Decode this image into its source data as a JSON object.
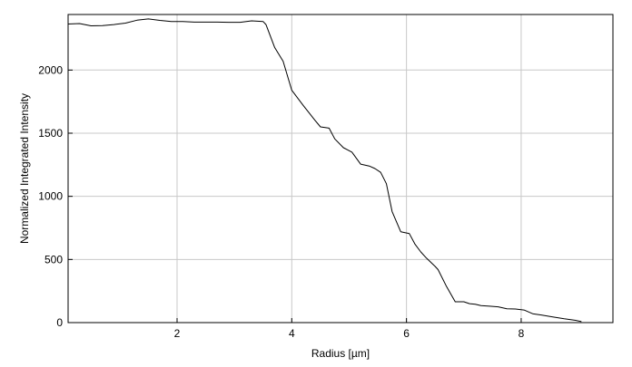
{
  "chart_data": {
    "type": "line",
    "title": "",
    "xlabel": "Radius [µm]",
    "ylabel": "Normalized Integrated Intensity",
    "xlim": [
      0.1,
      9.6
    ],
    "ylim": [
      0,
      2440
    ],
    "xticks": [
      2,
      4,
      6,
      8
    ],
    "yticks": [
      0,
      500,
      1000,
      1500,
      2000
    ],
    "grid": true,
    "series": [
      {
        "color": "#000000",
        "x": [
          0.1,
          0.3,
          0.5,
          0.7,
          0.9,
          1.1,
          1.3,
          1.5,
          1.7,
          1.9,
          2.1,
          2.3,
          2.5,
          2.7,
          2.9,
          3.1,
          3.3,
          3.5,
          3.55,
          3.7,
          3.85,
          4.0,
          4.2,
          4.4,
          4.5,
          4.65,
          4.75,
          4.9,
          5.05,
          5.2,
          5.35,
          5.45,
          5.55,
          5.65,
          5.75,
          5.9,
          6.05,
          6.15,
          6.25,
          6.35,
          6.5,
          6.55,
          6.7,
          6.85,
          7.0,
          7.1,
          7.2,
          7.3,
          7.45,
          7.6,
          7.75,
          7.9,
          8.05,
          8.2,
          8.35,
          8.55,
          8.75,
          8.95,
          9.05
        ],
        "y": [
          2365,
          2368,
          2350,
          2352,
          2360,
          2372,
          2395,
          2405,
          2393,
          2385,
          2385,
          2380,
          2380,
          2380,
          2378,
          2378,
          2390,
          2385,
          2360,
          2180,
          2070,
          1840,
          1720,
          1605,
          1550,
          1540,
          1455,
          1385,
          1350,
          1255,
          1240,
          1220,
          1190,
          1100,
          880,
          720,
          705,
          620,
          560,
          510,
          445,
          420,
          285,
          165,
          165,
          150,
          145,
          135,
          130,
          125,
          110,
          108,
          100,
          70,
          60,
          45,
          30,
          18,
          8
        ]
      }
    ]
  }
}
